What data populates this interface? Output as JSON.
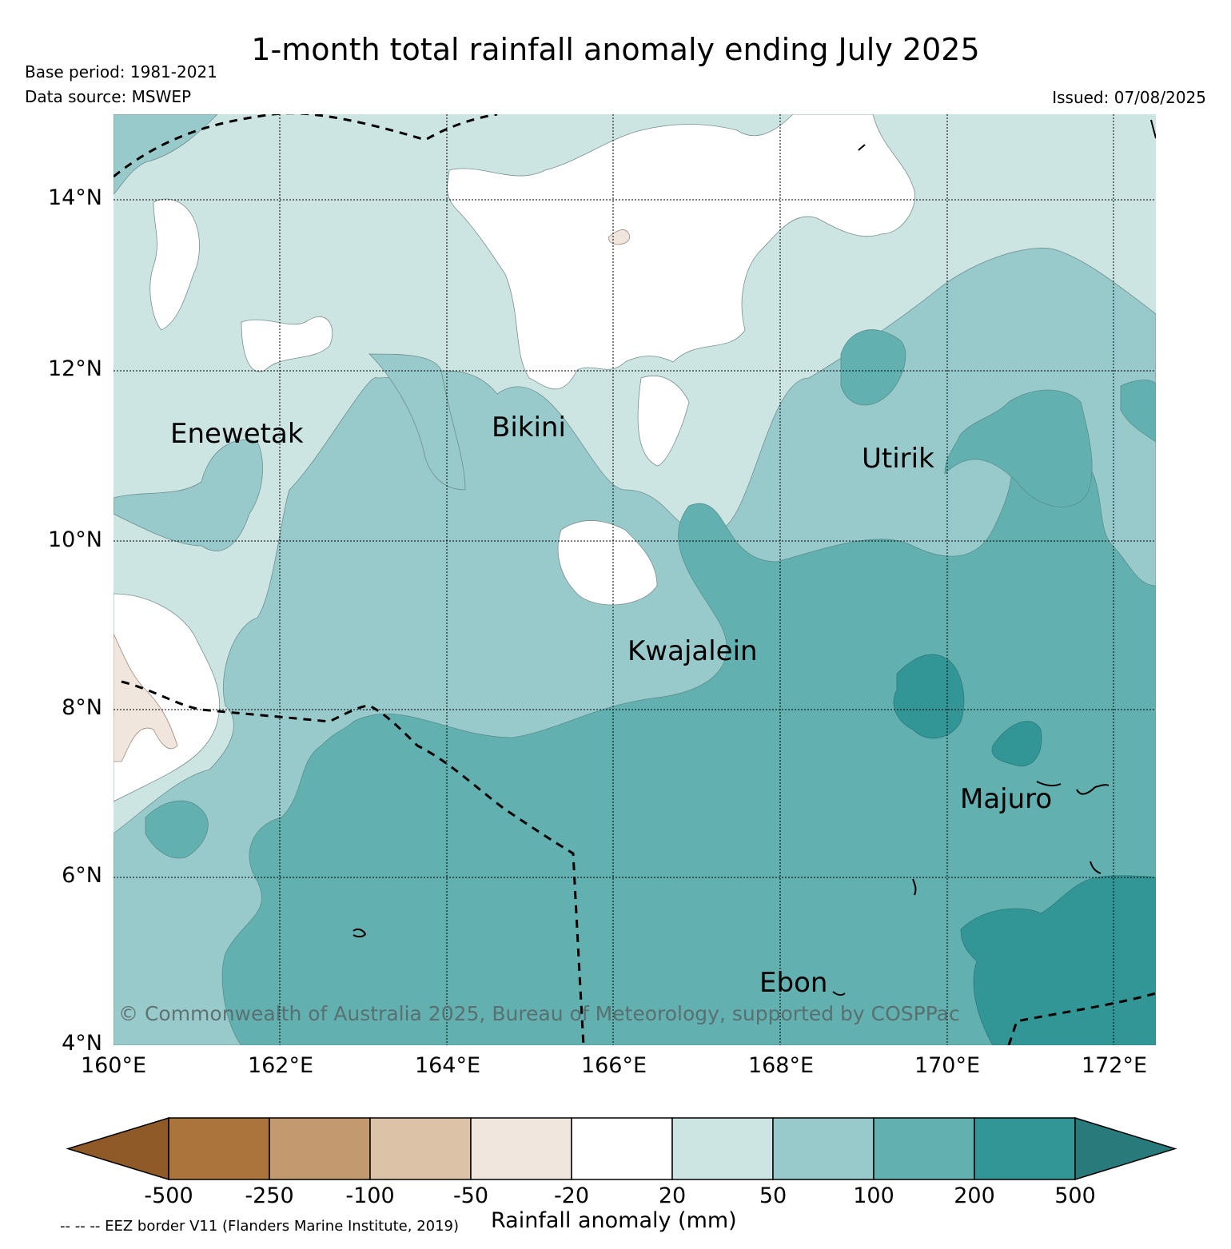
{
  "title": "1-month total rainfall anomaly ending July 2025",
  "base_period": "Base period: 1981-2021",
  "data_source": "Data source: MSWEP",
  "issued": "Issued: 07/08/2025",
  "lat_labels": [
    "14°N",
    "12°N",
    "10°N",
    "8°N",
    "6°N",
    "4°N"
  ],
  "lon_labels": [
    "160°E",
    "162°E",
    "164°E",
    "166°E",
    "168°E",
    "170°E",
    "172°E"
  ],
  "places": {
    "enewetak": "Enewetak",
    "bikini": "Bikini",
    "utirik": "Utirik",
    "kwajalein": "Kwajalein",
    "majuro": "Majuro",
    "ebon": "Ebon"
  },
  "copyright": "© Commonwealth of Australia 2025, Bureau of Meteorology, supported by COSPPac",
  "colorbar": {
    "labels": [
      "-500",
      "-250",
      "-100",
      "-50",
      "-20",
      "20",
      "50",
      "100",
      "200",
      "500"
    ],
    "colors": [
      "#8f5a28",
      "#ab743d",
      "#c39a70",
      "#dcc3a8",
      "#f1e6dd",
      "#ffffff",
      "#cce5e3",
      "#99cacb",
      "#62b0b0",
      "#319695",
      "#287b7a"
    ],
    "title": "Rainfall anomaly (mm)"
  },
  "footnote": "-- -- -- EEZ border V11 (Flanders Marine Institute, 2019)"
}
